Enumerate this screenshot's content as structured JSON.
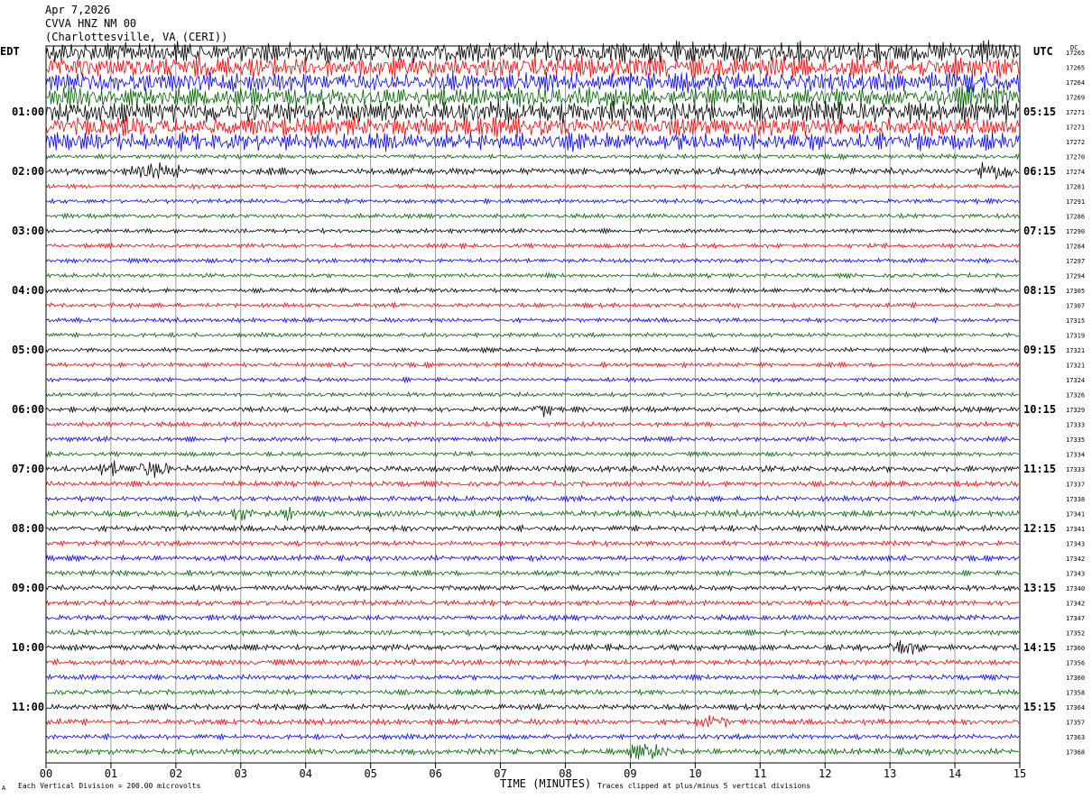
{
  "header": {
    "date": "Apr 7,2026",
    "station": "CVVA HNZ NM 00",
    "location": "(Charlottesville, VA (CERI))"
  },
  "left_timezone": "EDT",
  "right_timezone": "UTC",
  "dc_label": "DC",
  "footer": {
    "scale_note": "Each Vertical Division =  200.00 microvolts",
    "xlabel": "TIME (MINUTES)",
    "clip_note": "Traces clipped at plus/minus 5 vertical divisions",
    "corner_mark": "A"
  },
  "colors": {
    "traces": [
      "#000000",
      "#ff0000",
      "#0000ff",
      "#006400"
    ],
    "grid": "#808080"
  },
  "chart_data": {
    "type": "line",
    "title": "CVVA HNZ NM 00",
    "xlabel": "TIME (MINUTES)",
    "xlim": [
      0,
      15
    ],
    "x_ticks": [
      "00",
      "01",
      "02",
      "03",
      "04",
      "05",
      "06",
      "07",
      "08",
      "09",
      "10",
      "11",
      "12",
      "13",
      "14",
      "15"
    ],
    "left_hour_labels": [
      "01:00",
      "02:00",
      "03:00",
      "04:00",
      "05:00",
      "06:00",
      "07:00",
      "08:00",
      "09:00",
      "10:00",
      "11:00"
    ],
    "right_hour_labels": [
      "05:15",
      "06:15",
      "07:15",
      "08:15",
      "09:15",
      "10:15",
      "11:15",
      "12:15",
      "13:15",
      "14:15",
      "15:15"
    ],
    "row_dc_values": [
      "17265",
      "17265",
      "17264",
      "17269",
      "17271",
      "17271",
      "17272",
      "17270",
      "17274",
      "17281",
      "17291",
      "17286",
      "17290",
      "17284",
      "17297",
      "17294",
      "17305",
      "17307",
      "17315",
      "17319",
      "17321",
      "17321",
      "17324",
      "17326",
      "17329",
      "17333",
      "17335",
      "17334",
      "17333",
      "17337",
      "17338",
      "17341",
      "17341",
      "17343",
      "17342",
      "17343",
      "17340",
      "17342",
      "17347",
      "17352",
      "17360",
      "17356",
      "17360",
      "17358",
      "17364",
      "17357",
      "17363",
      "17368"
    ],
    "trace_amplitude_divisions": [
      5,
      5,
      4.5,
      4.5,
      5,
      4.5,
      4,
      1,
      1.6,
      1,
      1,
      1,
      1,
      1,
      1,
      1,
      1,
      1,
      1,
      1,
      1,
      1,
      1,
      1,
      1.2,
      1.1,
      1.1,
      1,
      1.5,
      1.2,
      1.2,
      1.4,
      1.4,
      1.2,
      1.2,
      1.2,
      1.3,
      1.2,
      1.2,
      1.2,
      1.4,
      1.3,
      1.2,
      1.2,
      1.3,
      1.3,
      1.2,
      1.4
    ],
    "trace_events": [
      {
        "row": 8,
        "start_min": 1.3,
        "end_min": 2.1,
        "amp_div": 3
      },
      {
        "row": 8,
        "start_min": 14.3,
        "end_min": 14.9,
        "amp_div": 4
      },
      {
        "row": 24,
        "start_min": 7.5,
        "end_min": 7.8,
        "amp_div": 3
      },
      {
        "row": 28,
        "start_min": 0.8,
        "end_min": 1.2,
        "amp_div": 3
      },
      {
        "row": 28,
        "start_min": 1.3,
        "end_min": 1.9,
        "amp_div": 3.5
      },
      {
        "row": 31,
        "start_min": 2.8,
        "end_min": 3.2,
        "amp_div": 2.5
      },
      {
        "row": 31,
        "start_min": 3.6,
        "end_min": 3.9,
        "amp_div": 2.5
      },
      {
        "row": 40,
        "start_min": 13.0,
        "end_min": 13.5,
        "amp_div": 3
      },
      {
        "row": 45,
        "start_min": 10.0,
        "end_min": 10.5,
        "amp_div": 2.5
      },
      {
        "row": 47,
        "start_min": 9.0,
        "end_min": 9.6,
        "amp_div": 3
      }
    ]
  }
}
